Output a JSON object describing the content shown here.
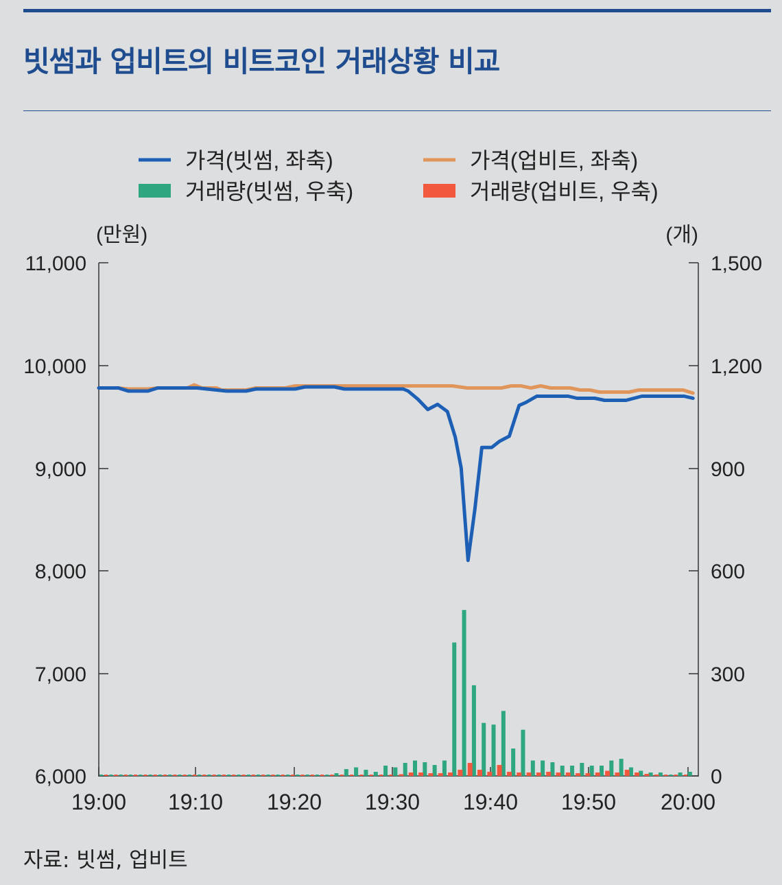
{
  "title": "빗썸과 업비트의 비트코인 거래상황 비교",
  "source": "자료: 빗썸, 업비트",
  "colors": {
    "accent": "#1f4c8f",
    "price_bithumb": "#1c5fb5",
    "price_upbit": "#e0955a",
    "volume_bithumb": "#2ea67f",
    "volume_upbit": "#f2583e"
  },
  "chart_data": {
    "type": "line",
    "left_axis": {
      "unit_label": "(만원)",
      "range": [
        6000,
        11000
      ],
      "ticks": [
        "6,000",
        "7,000",
        "8,000",
        "9,000",
        "10,000",
        "11,000"
      ]
    },
    "right_axis": {
      "unit_label": "(개)",
      "range": [
        0,
        1500
      ],
      "ticks": [
        "0",
        "300",
        "600",
        "900",
        "1,200",
        "1,500"
      ]
    },
    "x_ticks": [
      "19:00",
      "19:10",
      "19:20",
      "19:30",
      "19:40",
      "19:50",
      "20:00"
    ],
    "legend": {
      "price_bithumb": "가격(빗썸, 좌축)",
      "price_upbit": "가격(업비트, 좌축)",
      "volume_bithumb": "거래량(빗썸, 우축)",
      "volume_upbit": "거래량(업비트, 우축)"
    },
    "series": [
      {
        "name": "가격(빗썸, 좌축)",
        "axis": "left",
        "kind": "line",
        "points": [
          [
            0,
            9780
          ],
          [
            2,
            9780
          ],
          [
            3,
            9750
          ],
          [
            5,
            9750
          ],
          [
            6,
            9780
          ],
          [
            10,
            9780
          ],
          [
            12,
            9760
          ],
          [
            13,
            9750
          ],
          [
            15,
            9750
          ],
          [
            16,
            9770
          ],
          [
            20,
            9770
          ],
          [
            21,
            9790
          ],
          [
            24,
            9790
          ],
          [
            25,
            9770
          ],
          [
            31,
            9770
          ],
          [
            31.5,
            9750
          ],
          [
            32.5,
            9670
          ],
          [
            33.5,
            9570
          ],
          [
            34.5,
            9620
          ],
          [
            35.5,
            9550
          ],
          [
            36.3,
            9300
          ],
          [
            36.9,
            9000
          ],
          [
            37.6,
            8100
          ],
          [
            38.3,
            8600
          ],
          [
            39,
            9200
          ],
          [
            40,
            9200
          ],
          [
            40.8,
            9260
          ],
          [
            41.8,
            9310
          ],
          [
            42.8,
            9610
          ],
          [
            43.5,
            9640
          ],
          [
            44.6,
            9700
          ],
          [
            47.8,
            9700
          ],
          [
            48.7,
            9680
          ],
          [
            50.5,
            9680
          ],
          [
            51.5,
            9660
          ],
          [
            53.7,
            9660
          ],
          [
            55.3,
            9700
          ],
          [
            56.5,
            9700
          ],
          [
            59.6,
            9700
          ],
          [
            60.5,
            9680
          ]
        ]
      },
      {
        "name": "가격(업비트, 좌축)",
        "axis": "left",
        "kind": "line",
        "points": [
          [
            0,
            9780
          ],
          [
            2,
            9780
          ],
          [
            3,
            9770
          ],
          [
            5,
            9770
          ],
          [
            6,
            9780
          ],
          [
            9,
            9780
          ],
          [
            9.7,
            9810
          ],
          [
            10.5,
            9780
          ],
          [
            12,
            9780
          ],
          [
            12.5,
            9760
          ],
          [
            15,
            9760
          ],
          [
            16,
            9780
          ],
          [
            19,
            9780
          ],
          [
            20,
            9800
          ],
          [
            24,
            9800
          ],
          [
            25,
            9800
          ],
          [
            36,
            9800
          ],
          [
            37.5,
            9780
          ],
          [
            41,
            9780
          ],
          [
            42,
            9800
          ],
          [
            43,
            9800
          ],
          [
            44,
            9780
          ],
          [
            45,
            9800
          ],
          [
            46,
            9780
          ],
          [
            48,
            9780
          ],
          [
            49,
            9760
          ],
          [
            50,
            9760
          ],
          [
            51,
            9740
          ],
          [
            54,
            9740
          ],
          [
            55,
            9760
          ],
          [
            59.5,
            9760
          ],
          [
            60.5,
            9730
          ]
        ]
      },
      {
        "name": "거래량(빗썸, 우축)",
        "axis": "right",
        "kind": "bar",
        "x": [
          24.2,
          25.2,
          26.2,
          27.2,
          28.2,
          29.2,
          30.2,
          31.2,
          32.2,
          33.2,
          34.2,
          35.2,
          36.2,
          37.2,
          38.2,
          39.2,
          40.2,
          41.2,
          42.2,
          43.2,
          44.2,
          45.2,
          46.2,
          47.2,
          48.2,
          49.2,
          50.2,
          51.2,
          52.2,
          53.2,
          54.2,
          55.2,
          56.2,
          57.2,
          59.2,
          60.2
        ],
        "values": [
          8,
          20,
          25,
          18,
          12,
          30,
          25,
          38,
          45,
          40,
          32,
          45,
          390,
          485,
          265,
          155,
          150,
          190,
          80,
          135,
          45,
          45,
          40,
          30,
          30,
          38,
          30,
          30,
          45,
          50,
          25,
          15,
          10,
          10,
          10,
          12
        ]
      },
      {
        "name": "거래량(업비트, 우축)",
        "axis": "right",
        "kind": "bar",
        "x": [
          30.8,
          31.8,
          32.8,
          33.8,
          34.8,
          35.8,
          36.8,
          37.8,
          38.8,
          39.8,
          40.8,
          41.8,
          42.8,
          43.8,
          44.8,
          45.8,
          46.8,
          47.8,
          48.8,
          49.8,
          50.8,
          51.8,
          52.8,
          53.8,
          54.8,
          55.8,
          56.8
        ],
        "values": [
          5,
          10,
          10,
          8,
          8,
          10,
          18,
          38,
          18,
          12,
          32,
          12,
          10,
          10,
          10,
          12,
          10,
          10,
          8,
          8,
          10,
          15,
          10,
          18,
          10,
          6,
          4
        ]
      }
    ],
    "gap_marks": [
      1,
      2,
      3,
      4,
      5,
      6,
      7
    ]
  }
}
